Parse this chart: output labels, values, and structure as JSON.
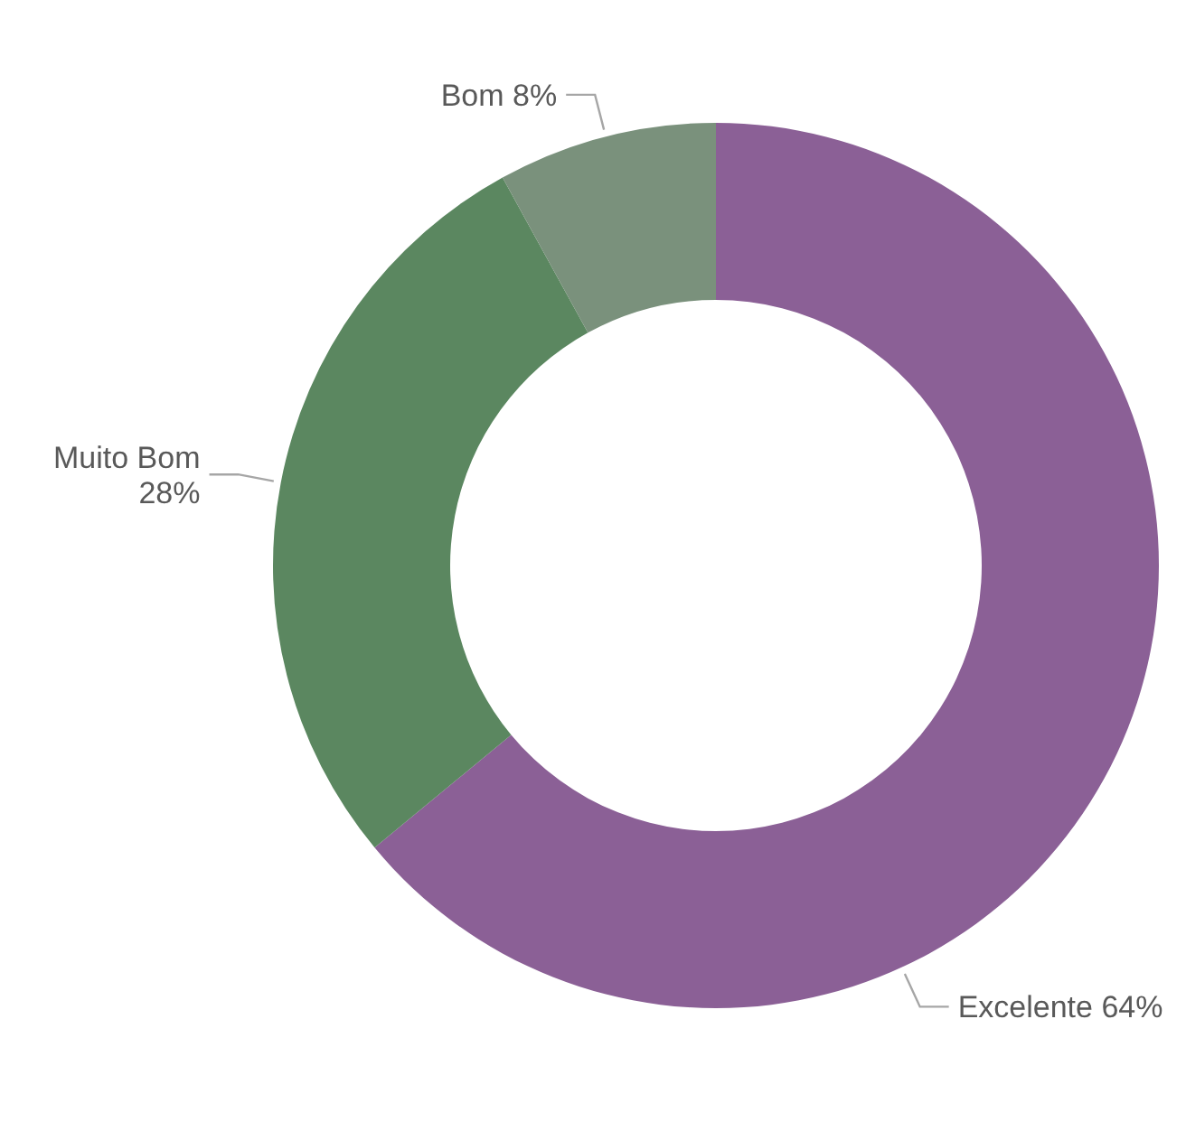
{
  "chart_data": {
    "type": "donut",
    "categories": [
      "Excelente",
      "Muito Bom",
      "Bom"
    ],
    "values": [
      64,
      28,
      8
    ],
    "colors": [
      "#8b6096",
      "#5b8760",
      "#7a917c"
    ],
    "value_labels": [
      "64%",
      "28%",
      "8%"
    ]
  }
}
